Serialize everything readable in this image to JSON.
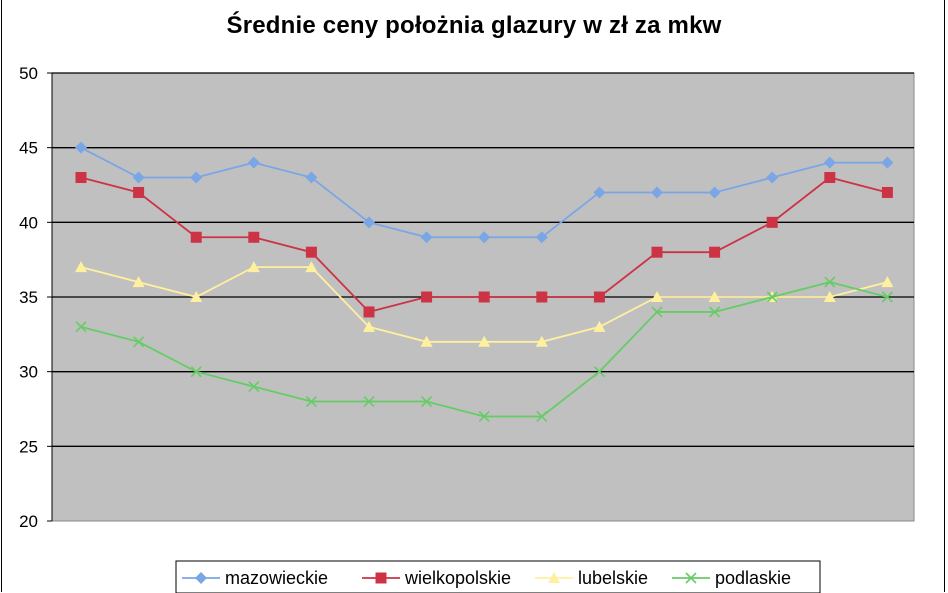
{
  "chart_data": {
    "type": "line",
    "title": "Średnie ceny położnia glazury w zł za mkw",
    "xlabel": "",
    "ylabel": "",
    "ylim": [
      20,
      50
    ],
    "yticks": [
      50,
      45,
      40,
      35,
      30,
      25,
      20
    ],
    "grid": true,
    "legend_position": "bottom",
    "background_color": "#c0c0c0",
    "series": [
      {
        "name": "mazowieckie",
        "color": "#7aa6e6",
        "marker": "diamond",
        "values": [
          45,
          43,
          43,
          44,
          43,
          40,
          39,
          39,
          39,
          42,
          42,
          42,
          43,
          44,
          44
        ]
      },
      {
        "name": "wielkopolskie",
        "color": "#cc3344",
        "marker": "square",
        "values": [
          43,
          42,
          39,
          39,
          38,
          34,
          35,
          35,
          35,
          35,
          38,
          38,
          40,
          43,
          42
        ]
      },
      {
        "name": "lubelskie",
        "color": "#fff0a0",
        "marker": "triangle",
        "values": [
          37,
          36,
          35,
          37,
          37,
          33,
          32,
          32,
          32,
          33,
          35,
          35,
          35,
          35,
          36
        ]
      },
      {
        "name": "podlaskie",
        "color": "#66cc66",
        "marker": "x",
        "values": [
          33,
          32,
          30,
          29,
          28,
          28,
          28,
          27,
          27,
          30,
          34,
          34,
          35,
          36,
          35
        ]
      }
    ]
  }
}
